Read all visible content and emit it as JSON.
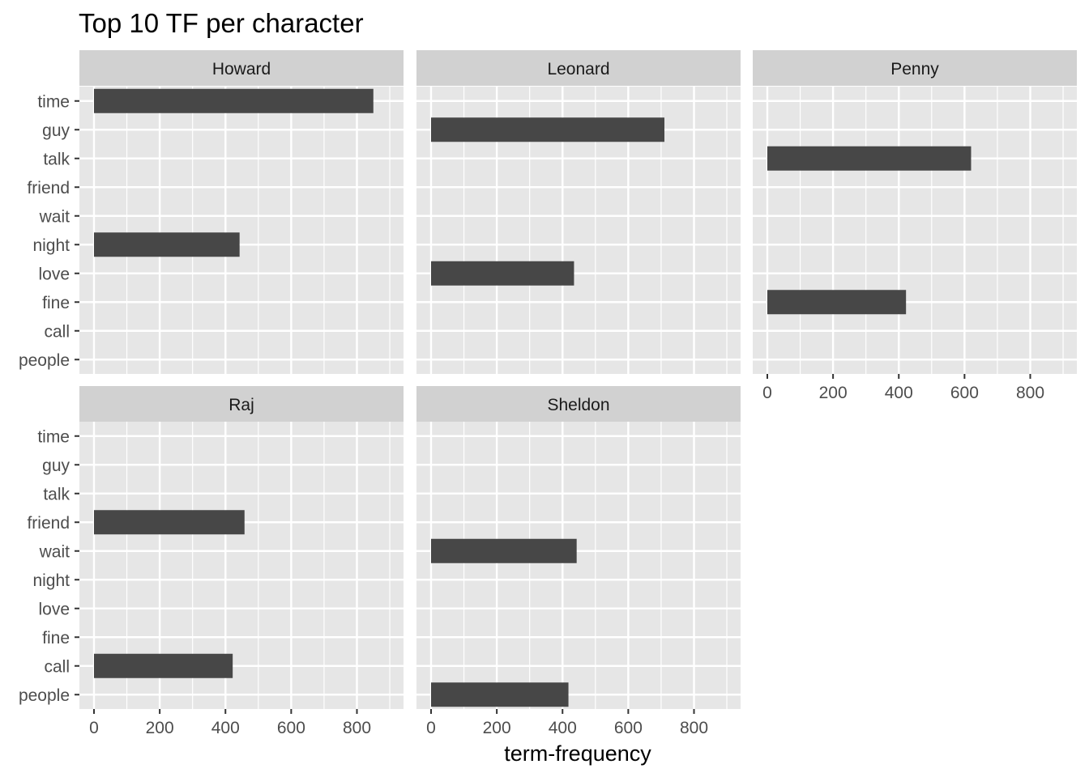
{
  "chart_data": {
    "type": "bar",
    "orientation": "horizontal",
    "title": "Top 10 TF per character",
    "xlabel": "term-frequency",
    "ylabel": "",
    "xlim": [
      0,
      890
    ],
    "x_ticks": [
      0,
      200,
      400,
      600,
      800
    ],
    "categories": [
      "time",
      "guy",
      "talk",
      "friend",
      "wait",
      "night",
      "love",
      "fine",
      "call",
      "people"
    ],
    "grid": true,
    "panels": [
      {
        "name": "Howard",
        "values": {
          "time": 850,
          "night": 443
        }
      },
      {
        "name": "Leonard",
        "values": {
          "guy": 710,
          "love": 435
        }
      },
      {
        "name": "Penny",
        "values": {
          "talk": 620,
          "fine": 422
        }
      },
      {
        "name": "Raj",
        "values": {
          "friend": 458,
          "call": 422
        }
      },
      {
        "name": "Sheldon",
        "values": {
          "wait": 443,
          "people": 418
        }
      }
    ],
    "colors": {
      "bar": "#474747",
      "panel_bg": "#e6e6e6",
      "strip_bg": "#d1d1d1",
      "grid": "#ffffff"
    }
  }
}
